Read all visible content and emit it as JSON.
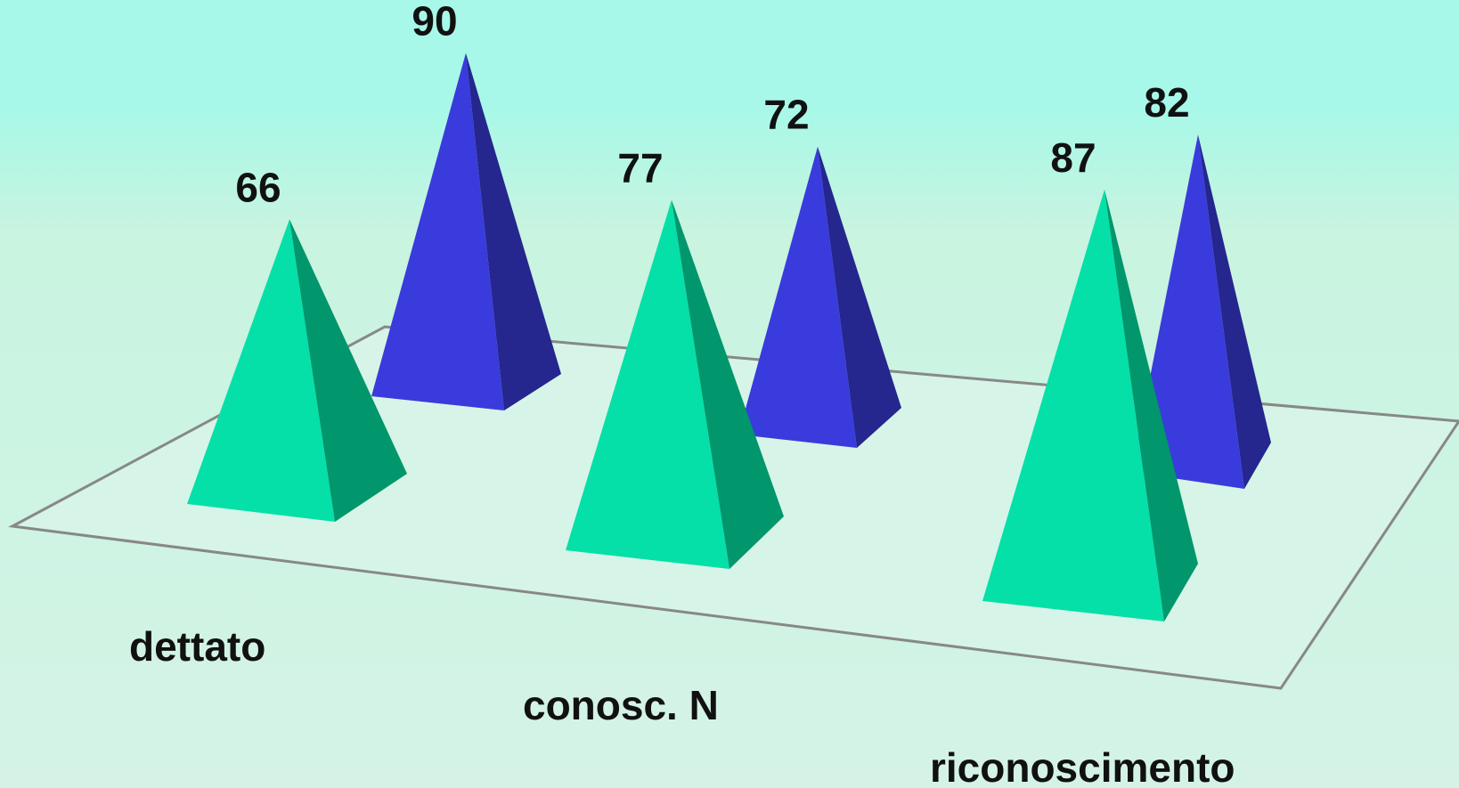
{
  "chart_data": {
    "type": "bar",
    "bar_shape": "pyramid-3d",
    "categories": [
      "dettato",
      "conosc. N",
      "riconoscimento"
    ],
    "series": [
      {
        "values": [
          66,
          77,
          87
        ],
        "color": "#05e0a8",
        "shade": "#01966c"
      },
      {
        "values": [
          90,
          72,
          82
        ],
        "color": "#3a3bdc",
        "shade": "#25268e"
      }
    ],
    "data_labels": {
      "series0": [
        "66",
        "77",
        "87"
      ],
      "series1": [
        "90",
        "72",
        "82"
      ]
    },
    "floor_color": "#d6f5e8",
    "floor_border_color": "#888888",
    "background_top": "#a7f8e8",
    "background_bottom": "#d4f3e6",
    "title": "",
    "xlabel": "",
    "ylabel": "",
    "ylim": [
      0,
      90
    ],
    "grid": false,
    "legend": "none"
  }
}
